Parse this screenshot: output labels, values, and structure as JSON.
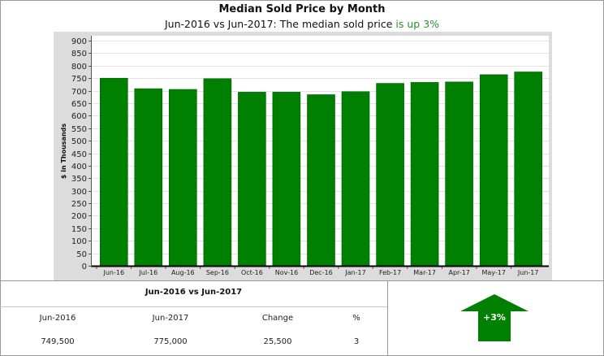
{
  "header": {
    "title": "Median Sold Price by Month",
    "subtitle_prefix": "Jun-2016 vs Jun-2017: The median sold price ",
    "subtitle_highlight": "is up 3%"
  },
  "colors": {
    "bar": "#008000",
    "bar_edge": "#005a00",
    "plot_bg": "#ffffff",
    "chart_bg": "#dcdcdc",
    "highlight_text": "#2e8b2e",
    "arrow": "#008000"
  },
  "chart_data": {
    "type": "bar",
    "title": "Median Sold Price by Month",
    "ylabel": "$ in Thousands",
    "xlabel": "",
    "ylim": [
      0,
      900
    ],
    "yticks": [
      0,
      50,
      100,
      150,
      200,
      250,
      300,
      350,
      400,
      450,
      500,
      550,
      600,
      650,
      700,
      750,
      800,
      850,
      900
    ],
    "grid": true,
    "categories": [
      "Jun-16",
      "Jul-16",
      "Aug-16",
      "Sep-16",
      "Oct-16",
      "Nov-16",
      "Dec-16",
      "Jan-17",
      "Feb-17",
      "Mar-17",
      "Apr-17",
      "May-17",
      "Jun-17"
    ],
    "values": [
      750,
      708,
      705,
      748,
      694,
      694,
      684,
      696,
      729,
      733,
      735,
      764,
      775
    ]
  },
  "comparison": {
    "title": "Jun-2016 vs Jun-2017",
    "headers": [
      "Jun-2016",
      "Jun-2017",
      "Change",
      "%"
    ],
    "values": [
      "749,500",
      "775,000",
      "25,500",
      "3"
    ],
    "badge": "+3%",
    "direction_icon": "up-arrow-icon"
  }
}
